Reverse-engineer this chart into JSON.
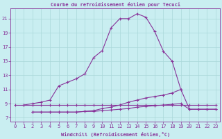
{
  "title": "Courbe du refroidissement éolien pour Tecuci",
  "xlabel": "Windchill (Refroidissement éolien,°C)",
  "xlim": [
    -0.5,
    23.5
  ],
  "ylim": [
    6.5,
    22.5
  ],
  "yticks": [
    7,
    9,
    11,
    13,
    15,
    17,
    19,
    21
  ],
  "xticks": [
    0,
    1,
    2,
    3,
    4,
    5,
    6,
    7,
    8,
    9,
    10,
    11,
    12,
    13,
    14,
    15,
    16,
    17,
    18,
    19,
    20,
    21,
    22,
    23
  ],
  "bg_color": "#c9eef1",
  "line_color": "#883399",
  "grid_color": "#aad8da",
  "line1_x": [
    0,
    1,
    2,
    3,
    4,
    5,
    6,
    7,
    8,
    9,
    10,
    11,
    12,
    13,
    14,
    15,
    16,
    17,
    18,
    19,
    20,
    21,
    22,
    23
  ],
  "line1_y": [
    8.8,
    8.8,
    8.8,
    8.8,
    8.8,
    8.8,
    8.8,
    8.8,
    8.8,
    8.8,
    8.8,
    8.8,
    8.8,
    8.8,
    8.8,
    8.8,
    8.8,
    8.8,
    8.8,
    8.8,
    8.8,
    8.8,
    8.8,
    8.8
  ],
  "line2_x": [
    2,
    3,
    4,
    5,
    6,
    7,
    8,
    9,
    10,
    11,
    12,
    13,
    14,
    15,
    16,
    17,
    18,
    19,
    20,
    21,
    22,
    23
  ],
  "line2_y": [
    7.8,
    7.8,
    7.8,
    7.8,
    7.8,
    7.8,
    7.9,
    7.9,
    8.0,
    8.1,
    8.2,
    8.3,
    8.5,
    8.6,
    8.7,
    8.8,
    8.9,
    9.0,
    8.2,
    8.2,
    8.2,
    8.2
  ],
  "line3_x": [
    2,
    3,
    4,
    5,
    6,
    7,
    8,
    9,
    10,
    11,
    12,
    13,
    14,
    15,
    16,
    17,
    18,
    19,
    20,
    21,
    22,
    23
  ],
  "line3_y": [
    7.8,
    7.8,
    7.8,
    7.8,
    7.8,
    7.8,
    7.9,
    8.0,
    8.3,
    8.5,
    8.8,
    9.2,
    9.5,
    9.8,
    10.0,
    10.2,
    10.5,
    11.0,
    8.2,
    8.2,
    8.2,
    8.2
  ],
  "line4_x": [
    1,
    2,
    3,
    4,
    5,
    6,
    7,
    8,
    9,
    10,
    11,
    12,
    13,
    14,
    15,
    16,
    17,
    18,
    19
  ],
  "line4_y": [
    8.8,
    9.0,
    9.2,
    9.5,
    11.5,
    12.0,
    12.5,
    13.2,
    15.5,
    16.5,
    19.7,
    21.0,
    21.0,
    21.7,
    21.2,
    19.2,
    16.4,
    15.0,
    11.0
  ],
  "marker_size": 2,
  "line_width": 0.8
}
